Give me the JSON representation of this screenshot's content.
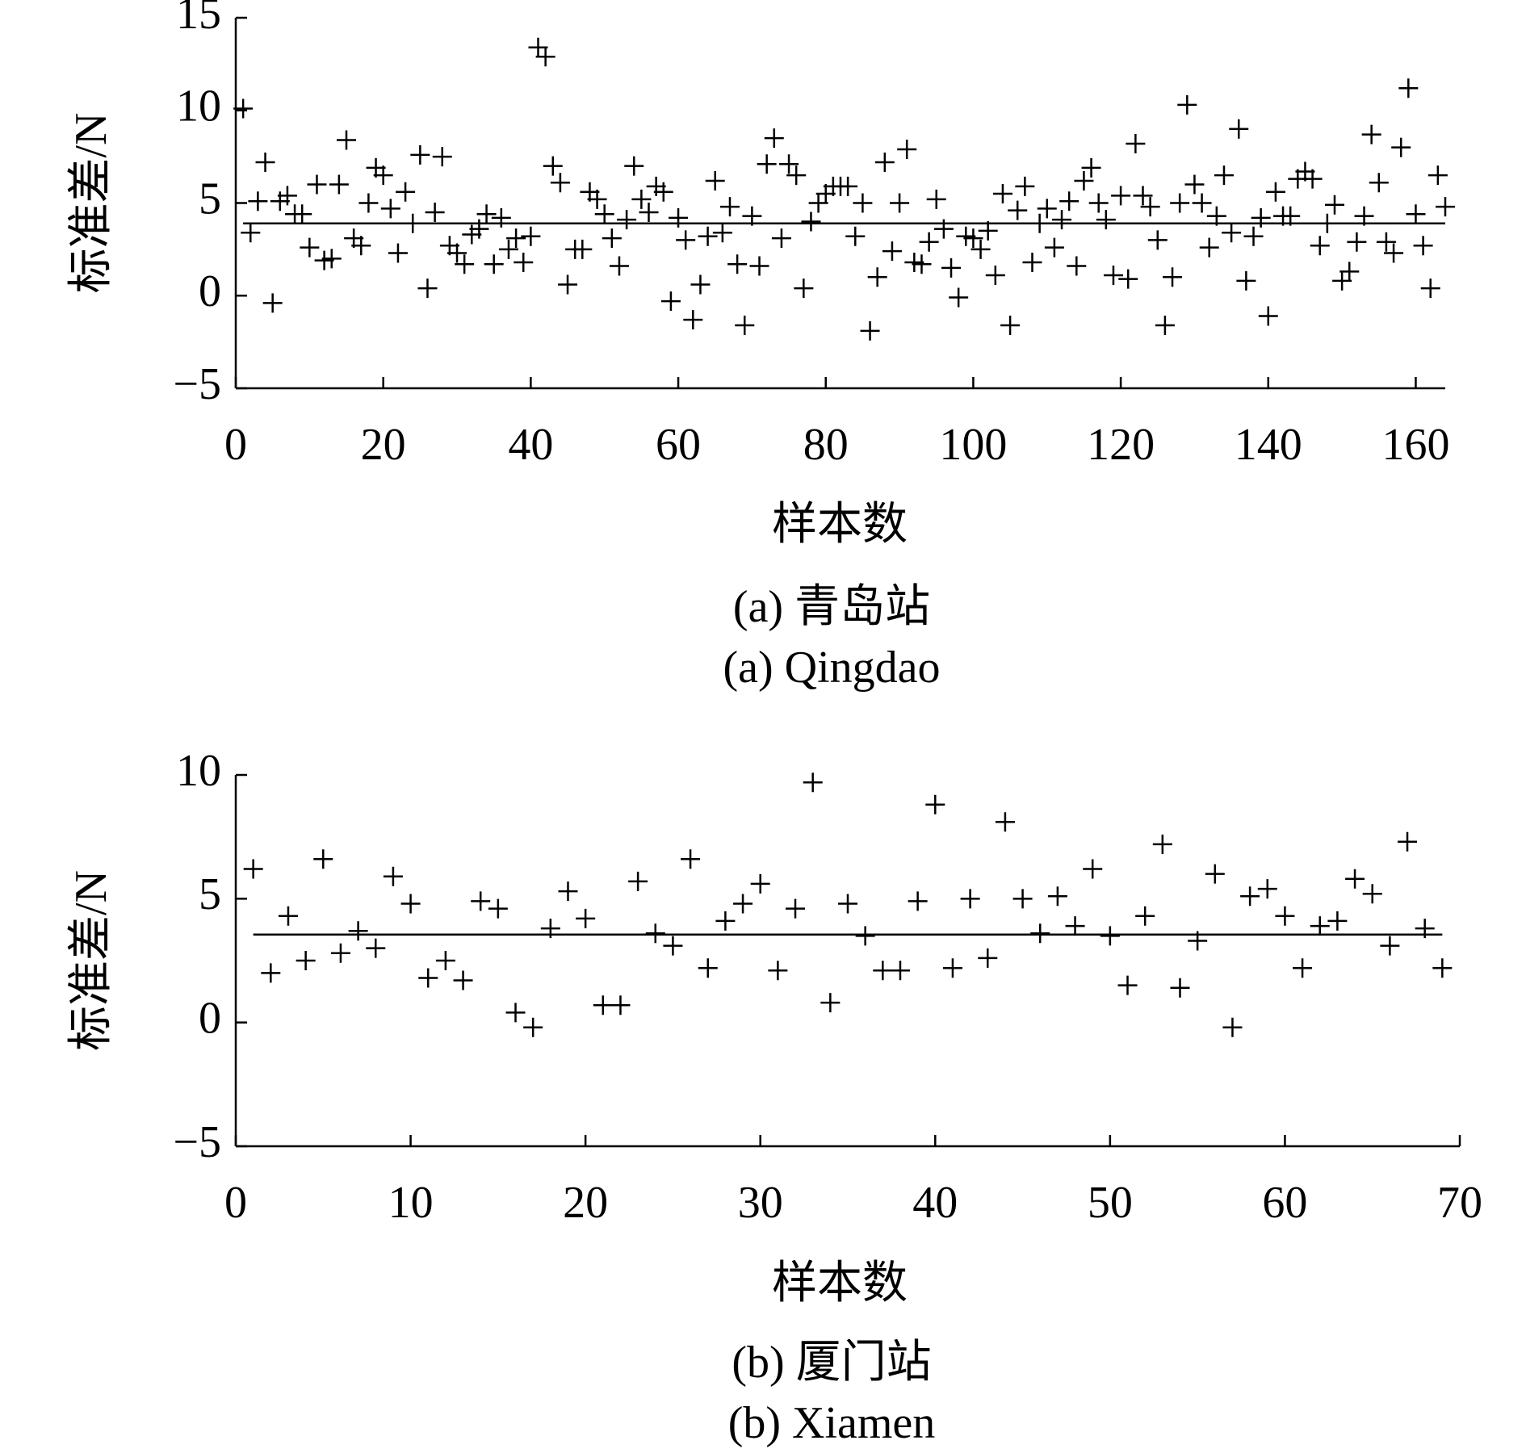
{
  "chart_data": [
    {
      "type": "scatter",
      "title": "(a) 青岛站",
      "subtitle": "(a) Qingdao",
      "x_label": "样本数",
      "y_label": "标准差/N",
      "color": "#000000",
      "marker": "+",
      "mean_line": 3.9,
      "x": [
        1,
        2,
        3,
        4,
        5,
        6,
        7,
        8,
        9,
        10,
        11,
        12,
        13,
        14,
        15,
        16,
        17,
        18,
        19,
        20,
        21,
        22,
        23,
        24,
        25,
        26,
        27,
        28,
        29,
        30,
        31,
        32,
        33,
        34,
        35,
        36,
        37,
        38,
        39,
        40,
        41,
        42,
        43,
        44,
        45,
        46,
        47,
        48,
        49,
        50,
        51,
        52,
        53,
        54,
        55,
        56,
        57,
        58,
        59,
        60,
        61,
        62,
        63,
        64,
        65,
        66,
        67,
        68,
        69,
        70,
        71,
        72,
        73,
        74,
        75,
        76,
        77,
        78,
        79,
        80,
        81,
        82,
        83,
        84,
        85,
        86,
        87,
        88,
        89,
        90,
        91,
        92,
        93,
        94,
        95,
        96,
        97,
        98,
        99,
        100,
        101,
        102,
        103,
        104,
        105,
        106,
        107,
        108,
        109,
        110,
        111,
        112,
        113,
        114,
        115,
        116,
        117,
        118,
        119,
        120,
        121,
        122,
        123,
        124,
        125,
        126,
        127,
        128,
        129,
        130,
        131,
        132,
        133,
        134,
        135,
        136,
        137,
        138,
        139,
        140,
        141,
        142,
        143,
        144,
        145,
        146,
        147,
        148,
        149,
        150,
        151,
        152,
        153,
        154,
        155,
        156,
        157,
        158,
        159,
        160,
        161,
        162,
        163,
        164
      ],
      "values": [
        10.1,
        3.4,
        5.1,
        7.2,
        -0.4,
        5.1,
        5.4,
        4.4,
        4.4,
        2.6,
        6.0,
        1.9,
        2.0,
        6.0,
        8.4,
        3.1,
        2.7,
        5.0,
        6.9,
        6.5,
        4.7,
        2.3,
        5.6,
        3.9,
        7.6,
        0.4,
        4.5,
        7.5,
        2.7,
        2.3,
        1.7,
        3.3,
        3.6,
        4.4,
        1.7,
        4.2,
        2.5,
        3.1,
        1.8,
        3.2,
        13.4,
        12.9,
        7.0,
        6.1,
        0.6,
        2.5,
        2.5,
        5.6,
        5.2,
        4.4,
        3.1,
        1.6,
        4.1,
        7.0,
        5.2,
        4.5,
        5.9,
        5.6,
        -0.3,
        4.2,
        3.0,
        -1.3,
        0.6,
        3.2,
        6.2,
        3.4,
        4.8,
        1.7,
        -1.6,
        4.3,
        1.6,
        7.1,
        8.5,
        3.1,
        7.1,
        6.5,
        0.4,
        4.0,
        5.0,
        5.5,
        5.9,
        5.9,
        5.9,
        3.2,
        5.0,
        -1.9,
        1.0,
        7.2,
        2.4,
        5.0,
        7.9,
        1.8,
        1.7,
        2.9,
        5.2,
        3.6,
        1.5,
        -0.1,
        3.2,
        3.1,
        2.5,
        3.5,
        1.1,
        5.5,
        -1.6,
        4.6,
        5.9,
        1.8,
        3.9,
        4.7,
        2.6,
        4.1,
        5.1,
        1.6,
        6.2,
        6.9,
        5.0,
        4.1,
        1.1,
        5.4,
        0.9,
        8.2,
        5.4,
        4.8,
        3.0,
        -1.6,
        1.0,
        5.0,
        10.3,
        6.0,
        5.0,
        2.6,
        4.3,
        6.5,
        3.4,
        9.0,
        0.8,
        3.2,
        4.2,
        -1.1,
        5.6,
        4.3,
        4.3,
        6.3,
        6.7,
        6.3,
        2.7,
        3.9,
        4.9,
        0.8,
        1.3,
        2.9,
        4.3,
        8.7,
        6.1,
        2.9,
        2.3,
        8.0,
        11.2,
        4.4,
        2.7,
        0.4,
        6.5,
        4.8
      ],
      "xlim": [
        0,
        164
      ],
      "xticks": [
        0,
        20,
        40,
        60,
        80,
        100,
        120,
        140,
        160
      ],
      "ylim": [
        -5,
        15
      ],
      "yticks": [
        {
          "value": -5,
          "label": "−5"
        },
        0,
        5,
        10,
        15
      ]
    },
    {
      "type": "scatter",
      "title": "(b) 厦门站",
      "subtitle": "(b) Xiamen",
      "x_label": "样本数",
      "y_label": "标准差/N",
      "color": "#000000",
      "marker": "+",
      "mean_line": 3.55,
      "x": [
        1,
        2,
        3,
        4,
        5,
        6,
        7,
        8,
        9,
        10,
        11,
        12,
        13,
        14,
        15,
        16,
        17,
        18,
        19,
        20,
        21,
        22,
        23,
        24,
        25,
        26,
        27,
        28,
        29,
        30,
        31,
        32,
        33,
        34,
        35,
        36,
        37,
        38,
        39,
        40,
        41,
        42,
        43,
        44,
        45,
        46,
        47,
        48,
        49,
        50,
        51,
        52,
        53,
        54,
        55,
        56,
        57,
        58,
        59,
        60,
        61,
        62,
        63,
        64,
        65,
        66,
        67,
        68,
        69
      ],
      "values": [
        6.2,
        2.0,
        4.3,
        2.5,
        6.6,
        2.8,
        3.7,
        3.0,
        5.9,
        4.8,
        1.8,
        2.5,
        1.7,
        4.9,
        4.6,
        0.4,
        -0.2,
        3.8,
        5.3,
        4.2,
        0.7,
        0.7,
        5.7,
        3.6,
        3.1,
        6.6,
        2.2,
        4.1,
        4.8,
        5.6,
        2.1,
        4.6,
        9.7,
        0.8,
        4.8,
        3.5,
        2.1,
        2.1,
        4.9,
        8.8,
        2.2,
        5.0,
        2.6,
        8.1,
        5.0,
        3.6,
        5.1,
        3.9,
        6.2,
        3.5,
        1.5,
        4.3,
        7.2,
        1.4,
        3.3,
        6.0,
        -0.2,
        5.1,
        5.4,
        4.3,
        2.2,
        3.9,
        4.1,
        5.8,
        5.2,
        3.1,
        7.3,
        3.8,
        2.2
      ],
      "xlim": [
        0,
        70
      ],
      "xticks": [
        0,
        10,
        20,
        30,
        40,
        50,
        60,
        70
      ],
      "ylim": [
        -5,
        10
      ],
      "yticks": [
        {
          "value": -5,
          "label": "−5"
        },
        0,
        5,
        10
      ]
    }
  ]
}
